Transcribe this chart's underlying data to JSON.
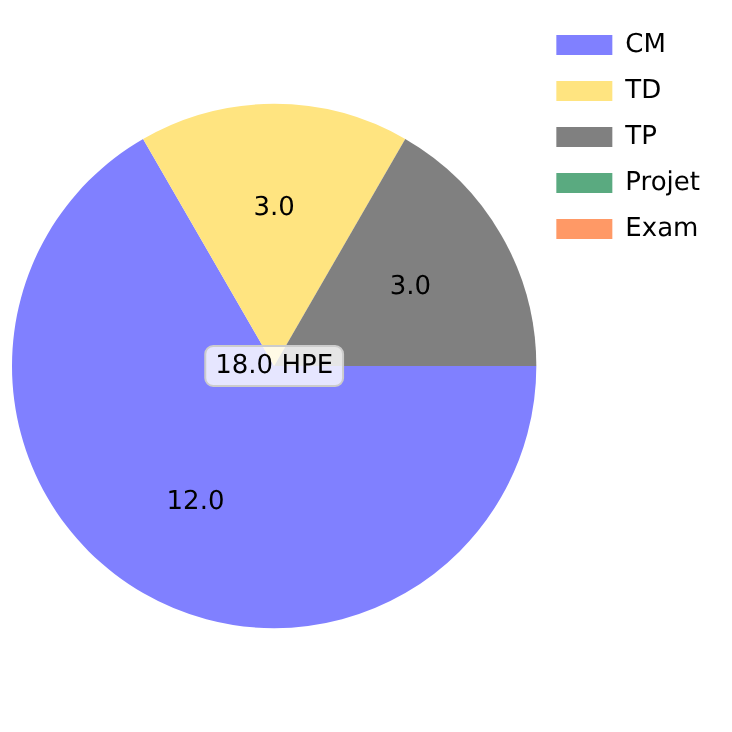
{
  "chart_data": {
    "type": "pie",
    "categories": [
      "CM",
      "TD",
      "TP",
      "Projet",
      "Exam"
    ],
    "values": [
      12,
      3,
      3,
      0,
      0
    ],
    "colors": [
      "#8080ff",
      "#ffe480",
      "#808080",
      "#5aaa80",
      "#ff9966"
    ],
    "value_labels": [
      "12.0",
      "3.0",
      "3.0",
      null,
      null
    ],
    "annotations": [
      "18.0 HPE"
    ],
    "legend": "top right"
  }
}
